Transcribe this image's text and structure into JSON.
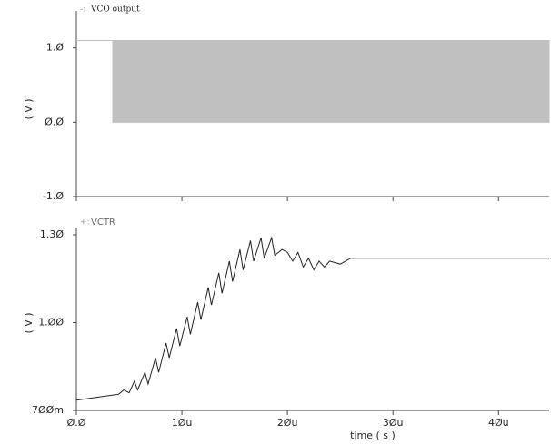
{
  "chart_data": [
    {
      "type": "band",
      "legend": "VCO output",
      "ylabel": "( V )",
      "xlim": [
        0,
        4.48e-05
      ],
      "ylim": [
        -1.0,
        1.4
      ],
      "yticks": [
        {
          "value": 1.0,
          "label": "1.Ø"
        },
        {
          "value": 0.0,
          "label": "Ø.Ø"
        },
        {
          "value": -1.0,
          "label": "-1.Ø"
        }
      ],
      "xticks": [
        0,
        1e-05,
        2e-05,
        3e-05,
        4e-05
      ],
      "series": [
        {
          "name": "VCO output",
          "color": "#c0c0c0",
          "x": [
            0,
            3.45e-06,
            3.45e-06,
            4.48e-05
          ],
          "high": [
            1.1,
            1.1,
            1.1,
            1.1
          ],
          "low": [
            1.1,
            1.1,
            0.0,
            0.0
          ]
        }
      ]
    },
    {
      "type": "line",
      "legend": "VCTR",
      "ylabel": "( V )",
      "xlabel": "time ( s )",
      "xlim": [
        0,
        4.48e-05
      ],
      "ylim": [
        0.7,
        1.3
      ],
      "yticks": [
        {
          "value": 1.3,
          "label": "1.3Ø"
        },
        {
          "value": 1.0,
          "label": "1.ØØ"
        },
        {
          "value": 0.7,
          "label": "7ØØm"
        }
      ],
      "xticks": [
        {
          "value": 0,
          "label": "Ø.Ø"
        },
        {
          "value": 1e-05,
          "label": "1Øu"
        },
        {
          "value": 2e-05,
          "label": "2Øu"
        },
        {
          "value": 3e-05,
          "label": "3Øu"
        },
        {
          "value": 4e-05,
          "label": "4Øu"
        }
      ],
      "series": [
        {
          "name": "VCTR",
          "color": "#222222",
          "x": [
            0,
            2e-06,
            4e-06,
            4.5e-06,
            5e-06,
            5.5e-06,
            5.8e-06,
            6.5e-06,
            6.8e-06,
            7.5e-06,
            7.8e-06,
            8.5e-06,
            8.8e-06,
            9.5e-06,
            9.8e-06,
            1.05e-05,
            1.08e-05,
            1.15e-05,
            1.18e-05,
            1.25e-05,
            1.28e-05,
            1.35e-05,
            1.38e-05,
            1.45e-05,
            1.48e-05,
            1.55e-05,
            1.58e-05,
            1.65e-05,
            1.68e-05,
            1.75e-05,
            1.78e-05,
            1.85e-05,
            1.88e-05,
            1.95e-05,
            2e-05,
            2.05e-05,
            2.1e-05,
            2.15e-05,
            2.2e-05,
            2.25e-05,
            2.3e-05,
            2.35e-05,
            2.4e-05,
            2.5e-05,
            2.6e-05,
            4.48e-05
          ],
          "values": [
            0.735,
            0.745,
            0.755,
            0.77,
            0.76,
            0.8,
            0.77,
            0.83,
            0.79,
            0.88,
            0.83,
            0.93,
            0.88,
            0.98,
            0.92,
            1.02,
            0.96,
            1.07,
            1.01,
            1.12,
            1.06,
            1.17,
            1.1,
            1.21,
            1.14,
            1.25,
            1.18,
            1.28,
            1.21,
            1.29,
            1.22,
            1.29,
            1.23,
            1.25,
            1.24,
            1.21,
            1.24,
            1.19,
            1.22,
            1.18,
            1.21,
            1.19,
            1.21,
            1.2,
            1.22,
            1.22
          ]
        }
      ]
    }
  ]
}
